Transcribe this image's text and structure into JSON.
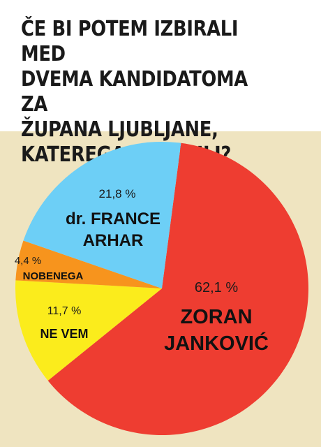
{
  "header": {
    "title": "ČE BI POTEM IZBIRALI MED\nDVEMA KANDIDATOMA ZA\nŽUPANA LJUBLJANE,\nKATEREGA BI VOLILI?"
  },
  "chart_data": {
    "type": "pie",
    "title": "ČE BI POTEM IZBIRALI MED DVEMA KANDIDATOMA ZA ŽUPANA LJUBLJANE, KATEREGA BI VOLILI?",
    "slices": [
      {
        "label": "ZORAN JANKOVIĆ",
        "label_lines": [
          "ZORAN",
          "JANKOVIĆ"
        ],
        "value": 62.1,
        "value_text": "62,1 %",
        "color": "#ee3d31"
      },
      {
        "label": "NE VEM",
        "label_lines": [
          "NE VEM"
        ],
        "value": 11.7,
        "value_text": "11,7 %",
        "color": "#fbec1c"
      },
      {
        "label": "NOBENEGA",
        "label_lines": [
          "NOBENEGA"
        ],
        "value": 4.4,
        "value_text": "4,4 %",
        "color": "#f7941d"
      },
      {
        "label": "dr. FRANCE ARHAR",
        "label_lines": [
          "dr. FRANCE",
          "ARHAR"
        ],
        "value": 21.8,
        "value_text": "21,8 %",
        "color": "#6dcff6"
      }
    ],
    "legend": "none"
  }
}
